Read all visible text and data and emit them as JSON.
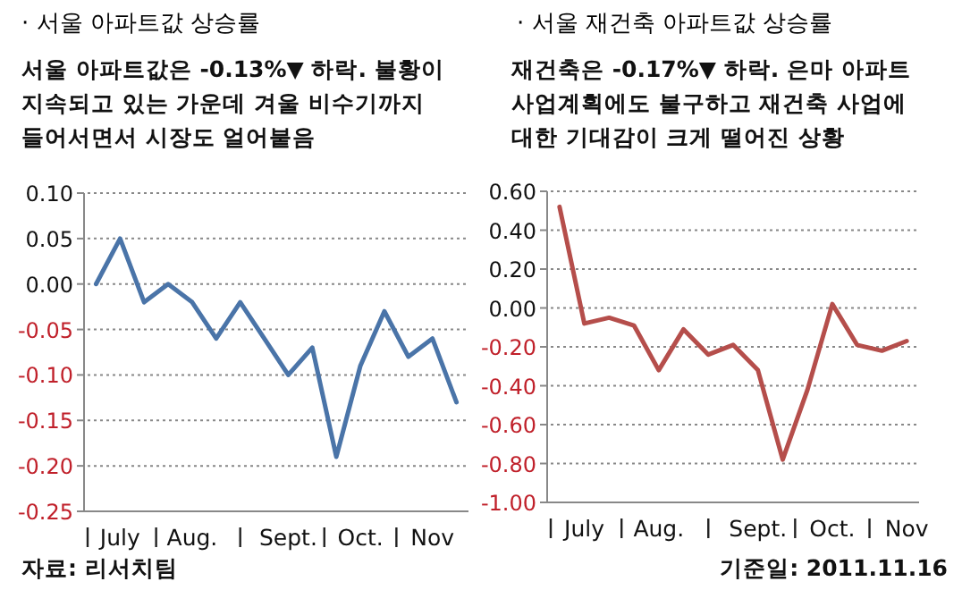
{
  "chart_data": [
    {
      "type": "line",
      "title": "· 서울 아파트값 상승률",
      "subtitle": "서울 아파트값은  -0.13%▼ 하락.  불황이 지속되고 있는 가운데 겨울 비수기까지 들어서면서 시장도 얼어붙음",
      "categories": [
        null,
        "July",
        null,
        null,
        "Aug.",
        null,
        null,
        null,
        "Sept.",
        null,
        null,
        "Oct.",
        null,
        null,
        "Nov",
        null
      ],
      "series": [
        {
          "color": "#4a74a8",
          "values": [
            0,
            0.05,
            -0.02,
            0,
            -0.02,
            -0.06,
            -0.02,
            -0.06,
            -0.1,
            -0.07,
            -0.19,
            -0.09,
            -0.03,
            -0.08,
            -0.06,
            -0.13
          ]
        }
      ],
      "ylim": [
        -0.25,
        0.1
      ],
      "yticks": [
        {
          "value": 0.1,
          "label": "0.10"
        },
        {
          "value": 0.05,
          "label": "0.05"
        },
        {
          "value": 0,
          "label": "0.00"
        },
        {
          "value": -0.05,
          "label": "-0.05"
        },
        {
          "value": -0.1,
          "label": "-0.10"
        },
        {
          "value": -0.15,
          "label": "-0.15"
        },
        {
          "value": -0.2,
          "label": "-0.20"
        },
        {
          "value": -0.25,
          "label": "-0.25"
        }
      ],
      "grid": "y",
      "marker": "none",
      "line_style": "solid",
      "annotations": [
        "자료: 리서치팀"
      ]
    },
    {
      "type": "line",
      "title": "· 서울 재건축 아파트값 상승률",
      "subtitle": "재건축은  -0.17%▼ 하락. 은마 아파트 사업계획에도 불구하고 재건축 사업에 대한 기대감이 크게 떨어진 상황",
      "categories": [
        null,
        "July",
        null,
        null,
        "Aug.",
        null,
        null,
        null,
        "Sept.",
        null,
        null,
        "Oct.",
        null,
        null,
        "Nov"
      ],
      "series": [
        {
          "color": "#b54e4b",
          "values": [
            0.52,
            -0.08,
            -0.05,
            -0.09,
            -0.32,
            -0.11,
            -0.24,
            -0.19,
            -0.32,
            -0.78,
            -0.42,
            0.02,
            -0.19,
            -0.22,
            -0.17
          ]
        }
      ],
      "ylim": [
        -1,
        0.6
      ],
      "yticks": [
        {
          "value": 0.6,
          "label": "0.60"
        },
        {
          "value": 0.4,
          "label": "0.40"
        },
        {
          "value": 0.2,
          "label": "0.20"
        },
        {
          "value": 0,
          "label": "0.00"
        },
        {
          "value": -0.2,
          "label": "-0.20"
        },
        {
          "value": -0.4,
          "label": "-0.40"
        },
        {
          "value": -0.6,
          "label": "-0.60"
        },
        {
          "value": -0.8,
          "label": "-0.80"
        },
        {
          "value": -1,
          "label": "-1.00"
        }
      ],
      "grid": "y",
      "marker": "none",
      "line_style": "solid",
      "annotations": [
        "기준일: 2011.11.16"
      ]
    }
  ]
}
